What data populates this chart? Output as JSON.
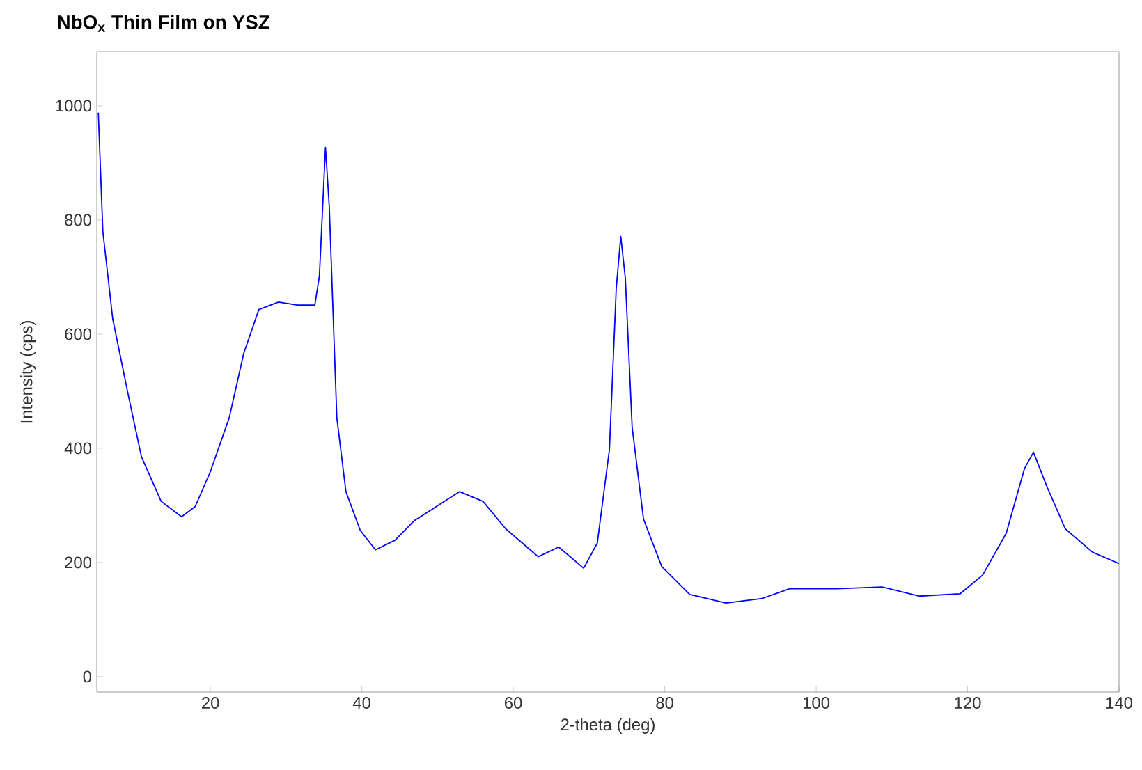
{
  "chart_data": {
    "type": "line",
    "title": "NbO$_{x}$ Thin Film on YSZ",
    "xlabel": "2-theta (deg)",
    "ylabel": "Intensity (cps)",
    "xlim": [
      5,
      140
    ],
    "ylim": [
      -27,
      1095
    ],
    "xticks": [
      20,
      40,
      60,
      80,
      100,
      120,
      140
    ],
    "yticks": [
      0,
      200,
      400,
      600,
      800,
      1000
    ],
    "grid": false,
    "marker": "none",
    "line_style": "solid",
    "series": [
      {
        "color": "#0000ff",
        "x": [
          5.2,
          5.8,
          7.1,
          9.1,
          10.9,
          13.5,
          16.2,
          18,
          20,
          22.5,
          24.4,
          26.4,
          29,
          31.5,
          33.8,
          34.4,
          35.2,
          35.7,
          36.7,
          37.9,
          39.8,
          41.8,
          44.4,
          46.9,
          48.1,
          52.9,
          56,
          59,
          63.3,
          66,
          69.3,
          71.1,
          72.7,
          73.6,
          74.2,
          74.8,
          75.7,
          77.2,
          79.6,
          83.3,
          88.1,
          92.9,
          96.5,
          102.7,
          108.7,
          113.6,
          119,
          122,
          125.1,
          127.5,
          128.7,
          130.5,
          132.9,
          136.5,
          140
        ],
        "values": [
          988,
          780,
          627,
          497,
          385,
          307,
          280,
          298,
          359,
          454,
          566,
          643,
          656,
          651,
          651,
          702,
          927,
          824,
          454,
          324,
          256,
          222,
          239,
          273,
          283,
          324,
          307,
          259,
          210,
          227,
          190,
          234,
          398,
          680,
          771,
          698,
          437,
          276,
          193,
          144,
          129,
          137,
          154,
          154,
          157,
          141,
          145,
          178,
          251,
          364,
          393,
          332,
          259,
          218,
          198
        ]
      }
    ]
  }
}
